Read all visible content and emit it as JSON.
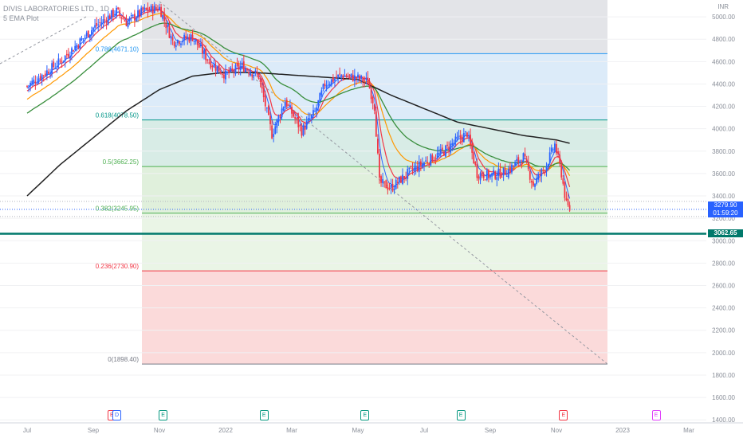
{
  "header": {
    "symbol": "DIVIS LABORATORIES LTD., 1D",
    "indicator": "5 EMA Plot"
  },
  "price_scale": {
    "currency": "INR"
  },
  "last_price": {
    "value": "3279.90",
    "countdown": "01:59:20",
    "color": "#2962ff"
  },
  "support_level": {
    "value": "3062.65",
    "color": "#00796b"
  },
  "fib_levels": [
    {
      "label": "0.786(4671.10)",
      "price": 4671.1,
      "color": "#2196f3"
    },
    {
      "label": "0.618(4078.50)",
      "price": 4078.5,
      "color": "#009688"
    },
    {
      "label": "0.5(3662.25)",
      "price": 3662.25,
      "color": "#4caf50"
    },
    {
      "label": "0.382(3245.95)",
      "price": 3245.95,
      "color": "#4caf50"
    },
    {
      "label": "0.236(2730.90)",
      "price": 2730.9,
      "color": "#f23645"
    },
    {
      "label": "0(1898.40)",
      "price": 1898.4,
      "color": "#787b86"
    }
  ],
  "events": [
    {
      "letter": "E",
      "month_index": 2.55,
      "color": "#f23645"
    },
    {
      "letter": "D",
      "month_index": 2.7,
      "color": "#2962ff"
    },
    {
      "letter": "E",
      "month_index": 4.1,
      "color": "#089981"
    },
    {
      "letter": "E",
      "month_index": 7.15,
      "color": "#089981"
    },
    {
      "letter": "E",
      "month_index": 10.2,
      "color": "#089981"
    },
    {
      "letter": "E",
      "month_index": 13.1,
      "color": "#089981"
    },
    {
      "letter": "E",
      "month_index": 16.2,
      "color": "#f23645"
    },
    {
      "letter": "E",
      "month_index": 19.0,
      "color": "#e040fb"
    }
  ],
  "chart_data": {
    "type": "candlestick",
    "x_axis_labels": [
      "Jul",
      "Sep",
      "Nov",
      "2022",
      "Mar",
      "May",
      "Jul",
      "Sep",
      "Nov",
      "2023",
      "Mar"
    ],
    "y_axis_ticks": [
      1400,
      1600,
      1800,
      2000,
      2200,
      2400,
      2600,
      2800,
      3000,
      3200,
      3400,
      3600,
      3800,
      4000,
      4200,
      4400,
      4600,
      4800,
      5000
    ],
    "ylim": [
      1380,
      5150
    ],
    "price_path": [
      {
        "t": 0.0,
        "p": 4380
      },
      {
        "t": 1.0,
        "p": 4600
      },
      {
        "t": 2.0,
        "p": 4900
      },
      {
        "t": 2.7,
        "p": 5050
      },
      {
        "t": 3.0,
        "p": 4950
      },
      {
        "t": 3.5,
        "p": 5050
      },
      {
        "t": 4.0,
        "p": 5080
      },
      {
        "t": 4.4,
        "p": 4780
      },
      {
        "t": 5.0,
        "p": 4820
      },
      {
        "t": 5.5,
        "p": 4600
      },
      {
        "t": 6.0,
        "p": 4480
      },
      {
        "t": 6.5,
        "p": 4560
      },
      {
        "t": 7.0,
        "p": 4470
      },
      {
        "t": 7.4,
        "p": 3950
      },
      {
        "t": 7.8,
        "p": 4250
      },
      {
        "t": 8.3,
        "p": 3980
      },
      {
        "t": 8.7,
        "p": 4150
      },
      {
        "t": 9.0,
        "p": 4400
      },
      {
        "t": 9.5,
        "p": 4480
      },
      {
        "t": 10.0,
        "p": 4450
      },
      {
        "t": 10.3,
        "p": 4420
      },
      {
        "t": 10.5,
        "p": 4200
      },
      {
        "t": 10.65,
        "p": 3520
      },
      {
        "t": 11.0,
        "p": 3470
      },
      {
        "t": 11.5,
        "p": 3600
      },
      {
        "t": 12.0,
        "p": 3700
      },
      {
        "t": 12.5,
        "p": 3780
      },
      {
        "t": 13.0,
        "p": 3900
      },
      {
        "t": 13.3,
        "p": 3960
      },
      {
        "t": 13.6,
        "p": 3600
      },
      {
        "t": 14.0,
        "p": 3580
      },
      {
        "t": 14.5,
        "p": 3620
      },
      {
        "t": 15.0,
        "p": 3750
      },
      {
        "t": 15.3,
        "p": 3500
      },
      {
        "t": 15.7,
        "p": 3680
      },
      {
        "t": 15.95,
        "p": 3860
      },
      {
        "t": 16.15,
        "p": 3600
      },
      {
        "t": 16.3,
        "p": 3320
      },
      {
        "t": 16.4,
        "p": 3280
      }
    ],
    "ema_200": [
      {
        "t": 0.0,
        "p": 3400
      },
      {
        "t": 1.0,
        "p": 3680
      },
      {
        "t": 2.0,
        "p": 3920
      },
      {
        "t": 3.0,
        "p": 4160
      },
      {
        "t": 4.0,
        "p": 4350
      },
      {
        "t": 5.0,
        "p": 4470
      },
      {
        "t": 6.0,
        "p": 4505
      },
      {
        "t": 7.0,
        "p": 4500
      },
      {
        "t": 8.0,
        "p": 4480
      },
      {
        "t": 9.0,
        "p": 4460
      },
      {
        "t": 10.0,
        "p": 4440
      },
      {
        "t": 11.0,
        "p": 4300
      },
      {
        "t": 12.0,
        "p": 4180
      },
      {
        "t": 13.0,
        "p": 4060
      },
      {
        "t": 14.0,
        "p": 4000
      },
      {
        "t": 15.0,
        "p": 3940
      },
      {
        "t": 16.0,
        "p": 3900
      },
      {
        "t": 16.4,
        "p": 3870
      }
    ],
    "ema_fib_label": "0.786(4671.10)"
  }
}
